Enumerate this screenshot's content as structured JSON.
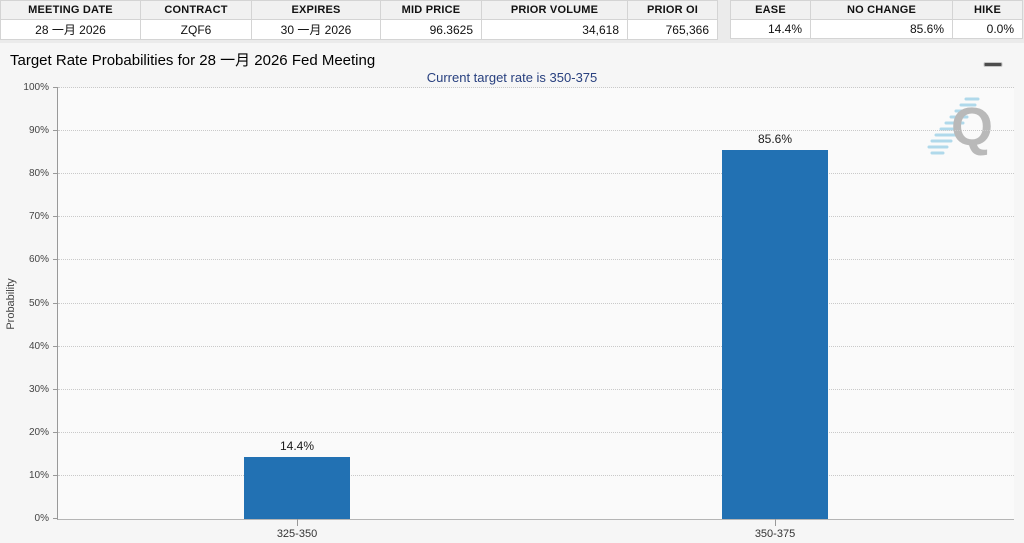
{
  "contract_table": {
    "headers": [
      "MEETING DATE",
      "CONTRACT",
      "EXPIRES",
      "MID PRICE",
      "PRIOR VOLUME",
      "PRIOR OI"
    ],
    "values": [
      "28 一月 2026",
      "ZQF6",
      "30 一月 2026",
      "96.3625",
      "34,618",
      "765,366"
    ]
  },
  "probability_table": {
    "headers": [
      "EASE",
      "NO CHANGE",
      "HIKE"
    ],
    "values": [
      "14.4%",
      "85.6%",
      "0.0%"
    ]
  },
  "chart": {
    "title": "Target Rate Probabilities for 28 一月 2026 Fed Meeting",
    "subtitle": "Current target rate is 350-375",
    "menu_icon": "hamburger-menu-icon",
    "watermark_letter": "Q"
  },
  "chart_data": {
    "type": "bar",
    "title": "Target Rate Probabilities for 28 一月 2026 Fed Meeting",
    "subtitle": "Current target rate is 350-375",
    "categories": [
      "325-350",
      "350-375"
    ],
    "values": [
      14.4,
      85.6
    ],
    "value_labels": [
      "14.4%",
      "85.6%"
    ],
    "xlabel": "",
    "ylabel": "Probability",
    "ylim": [
      0,
      100
    ],
    "yticks": [
      0,
      10,
      20,
      30,
      40,
      50,
      60,
      70,
      80,
      90,
      100
    ],
    "ytick_labels": [
      "0%",
      "10%",
      "20%",
      "30%",
      "40%",
      "50%",
      "60%",
      "70%",
      "80%",
      "90%",
      "100%"
    ],
    "grid": "horizontal-dotted",
    "legend": "none",
    "bar_color": "#2271b3"
  },
  "colors": {
    "bar": "#2271b3",
    "subtitle_text": "#28407f",
    "panel_background": "#f6f6f6",
    "plot_background": "#fafafa",
    "table_header_background": "#f1f1f1",
    "watermark_gray": "#b3b3b3",
    "watermark_blue": "#a9d6ea"
  }
}
